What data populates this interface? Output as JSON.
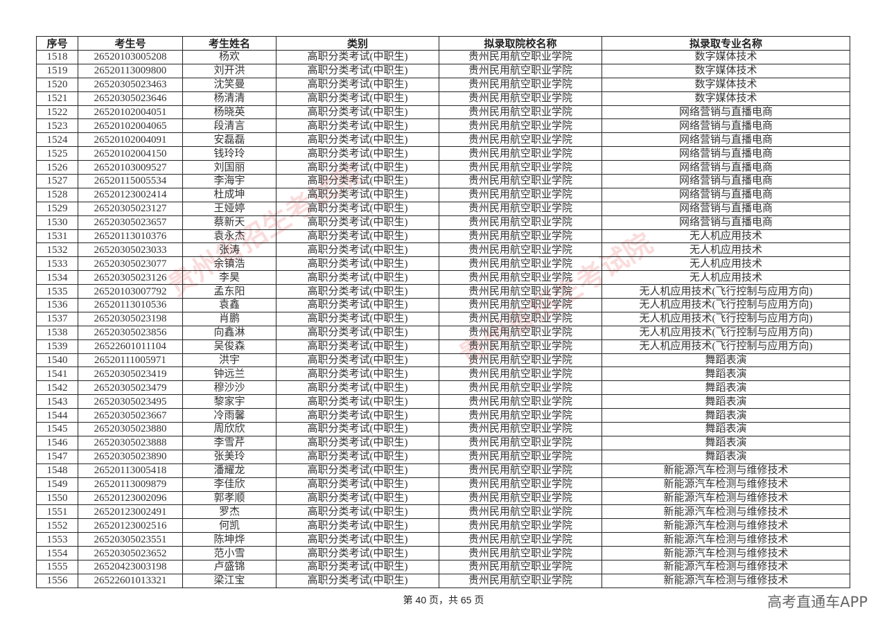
{
  "table": {
    "headers": [
      "序号",
      "考生号",
      "考生姓名",
      "类别",
      "拟录取院校名称",
      "拟录取专业名称"
    ],
    "rows": [
      [
        "1518",
        "26520103005208",
        "杨欢",
        "高职分类考试(中职生)",
        "贵州民用航空职业学院",
        "数字媒体技术"
      ],
      [
        "1519",
        "26520113009800",
        "刘开洪",
        "高职分类考试(中职生)",
        "贵州民用航空职业学院",
        "数字媒体技术"
      ],
      [
        "1520",
        "26520305023463",
        "沈笑曼",
        "高职分类考试(中职生)",
        "贵州民用航空职业学院",
        "数字媒体技术"
      ],
      [
        "1521",
        "26520305023646",
        "杨清清",
        "高职分类考试(中职生)",
        "贵州民用航空职业学院",
        "数字媒体技术"
      ],
      [
        "1522",
        "26520102004051",
        "杨晓英",
        "高职分类考试(中职生)",
        "贵州民用航空职业学院",
        "网络营销与直播电商"
      ],
      [
        "1523",
        "26520102004065",
        "段清言",
        "高职分类考试(中职生)",
        "贵州民用航空职业学院",
        "网络营销与直播电商"
      ],
      [
        "1524",
        "26520102004091",
        "安磊磊",
        "高职分类考试(中职生)",
        "贵州民用航空职业学院",
        "网络营销与直播电商"
      ],
      [
        "1525",
        "26520102004150",
        "钱玲玲",
        "高职分类考试(中职生)",
        "贵州民用航空职业学院",
        "网络营销与直播电商"
      ],
      [
        "1526",
        "26520103009527",
        "刘国丽",
        "高职分类考试(中职生)",
        "贵州民用航空职业学院",
        "网络营销与直播电商"
      ],
      [
        "1527",
        "26520115005534",
        "李海宇",
        "高职分类考试(中职生)",
        "贵州民用航空职业学院",
        "网络营销与直播电商"
      ],
      [
        "1528",
        "26520123002414",
        "杜成坤",
        "高职分类考试(中职生)",
        "贵州民用航空职业学院",
        "网络营销与直播电商"
      ],
      [
        "1529",
        "26520305023127",
        "王娅婷",
        "高职分类考试(中职生)",
        "贵州民用航空职业学院",
        "网络营销与直播电商"
      ],
      [
        "1530",
        "26520305023657",
        "蔡新天",
        "高职分类考试(中职生)",
        "贵州民用航空职业学院",
        "网络营销与直播电商"
      ],
      [
        "1531",
        "26520113010376",
        "袁永杰",
        "高职分类考试(中职生)",
        "贵州民用航空职业学院",
        "无人机应用技术"
      ],
      [
        "1532",
        "26520305023033",
        "张涛",
        "高职分类考试(中职生)",
        "贵州民用航空职业学院",
        "无人机应用技术"
      ],
      [
        "1533",
        "26520305023077",
        "余镇浩",
        "高职分类考试(中职生)",
        "贵州民用航空职业学院",
        "无人机应用技术"
      ],
      [
        "1534",
        "26520305023126",
        "李昊",
        "高职分类考试(中职生)",
        "贵州民用航空职业学院",
        "无人机应用技术"
      ],
      [
        "1535",
        "26520103007792",
        "孟东阳",
        "高职分类考试(中职生)",
        "贵州民用航空职业学院",
        "无人机应用技术(飞行控制与应用方向)"
      ],
      [
        "1536",
        "26520113010536",
        "袁鑫",
        "高职分类考试(中职生)",
        "贵州民用航空职业学院",
        "无人机应用技术(飞行控制与应用方向)"
      ],
      [
        "1537",
        "26520305023198",
        "肖鹏",
        "高职分类考试(中职生)",
        "贵州民用航空职业学院",
        "无人机应用技术(飞行控制与应用方向)"
      ],
      [
        "1538",
        "26520305023856",
        "向鑫淋",
        "高职分类考试(中职生)",
        "贵州民用航空职业学院",
        "无人机应用技术(飞行控制与应用方向)"
      ],
      [
        "1539",
        "26522601011104",
        "吴俊森",
        "高职分类考试(中职生)",
        "贵州民用航空职业学院",
        "无人机应用技术(飞行控制与应用方向)"
      ],
      [
        "1540",
        "26520111005971",
        "洪宇",
        "高职分类考试(中职生)",
        "贵州民用航空职业学院",
        "舞蹈表演"
      ],
      [
        "1541",
        "26520305023419",
        "钟远兰",
        "高职分类考试(中职生)",
        "贵州民用航空职业学院",
        "舞蹈表演"
      ],
      [
        "1542",
        "26520305023479",
        "穆沙沙",
        "高职分类考试(中职生)",
        "贵州民用航空职业学院",
        "舞蹈表演"
      ],
      [
        "1543",
        "26520305023495",
        "黎家宇",
        "高职分类考试(中职生)",
        "贵州民用航空职业学院",
        "舞蹈表演"
      ],
      [
        "1544",
        "26520305023667",
        "冷雨馨",
        "高职分类考试(中职生)",
        "贵州民用航空职业学院",
        "舞蹈表演"
      ],
      [
        "1545",
        "26520305023880",
        "周欣欣",
        "高职分类考试(中职生)",
        "贵州民用航空职业学院",
        "舞蹈表演"
      ],
      [
        "1546",
        "26520305023888",
        "李雪芹",
        "高职分类考试(中职生)",
        "贵州民用航空职业学院",
        "舞蹈表演"
      ],
      [
        "1547",
        "26520305023890",
        "张美玲",
        "高职分类考试(中职生)",
        "贵州民用航空职业学院",
        "舞蹈表演"
      ],
      [
        "1548",
        "26520113005418",
        "潘耀龙",
        "高职分类考试(中职生)",
        "贵州民用航空职业学院",
        "新能源汽车检测与维修技术"
      ],
      [
        "1549",
        "26520113009879",
        "李佳欣",
        "高职分类考试(中职生)",
        "贵州民用航空职业学院",
        "新能源汽车检测与维修技术"
      ],
      [
        "1550",
        "26520123002096",
        "郭孝顺",
        "高职分类考试(中职生)",
        "贵州民用航空职业学院",
        "新能源汽车检测与维修技术"
      ],
      [
        "1551",
        "26520123002491",
        "罗杰",
        "高职分类考试(中职生)",
        "贵州民用航空职业学院",
        "新能源汽车检测与维修技术"
      ],
      [
        "1552",
        "26520123002516",
        "何凯",
        "高职分类考试(中职生)",
        "贵州民用航空职业学院",
        "新能源汽车检测与维修技术"
      ],
      [
        "1553",
        "26520305023551",
        "陈坤烨",
        "高职分类考试(中职生)",
        "贵州民用航空职业学院",
        "新能源汽车检测与维修技术"
      ],
      [
        "1554",
        "26520305023652",
        "范小雪",
        "高职分类考试(中职生)",
        "贵州民用航空职业学院",
        "新能源汽车检测与维修技术"
      ],
      [
        "1555",
        "26520423003198",
        "卢盛锦",
        "高职分类考试(中职生)",
        "贵州民用航空职业学院",
        "新能源汽车检测与维修技术"
      ],
      [
        "1556",
        "26522601013321",
        "梁江宝",
        "高职分类考试(中职生)",
        "贵州民用航空职业学院",
        "新能源汽车检测与维修技术"
      ]
    ]
  },
  "footer": {
    "page_text": "第 40 页，共 65 页"
  },
  "brand": "高考直通车APP",
  "watermark": "贵州省招生考试院",
  "colors": {
    "watermark": "#e63c3c"
  }
}
